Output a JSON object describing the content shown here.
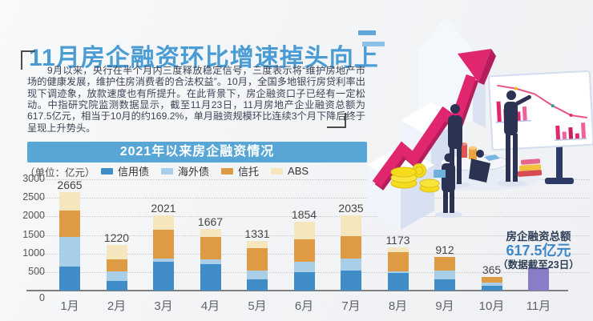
{
  "title": "11月房企融资环比增速掉头向上",
  "intro": "　　9月以来，央行在半个月内三度释放稳定信号，三度表示将“维护房地产市场的健康发展，维护住房消费者的合法权益”。10月，全国多地银行房贷利率出现下调迹象，放款速度也有所提升。在此背景下，房企融资口子已经有一定松动。中指研究院监测数据显示，截至11月23日，11月房地产企业融资总额为617.5亿元，相当于10月的约169.2%，单月融资规模环比连续3个月下降后终于呈现上升势头。",
  "chart": {
    "header": "2021年以来房企融资情况",
    "unit_label": "（单位：亿元）"
  },
  "annotation": {
    "title": "房企融资总额",
    "value": "617.5亿元",
    "note": "（数据截至23日）"
  },
  "chart_data": {
    "type": "bar",
    "stacked": true,
    "title": "2021年以来房企融资情况",
    "unit": "亿元",
    "categories": [
      "1月",
      "2月",
      "3月",
      "4月",
      "5月",
      "6月",
      "7月",
      "8月",
      "9月",
      "10月",
      "11月"
    ],
    "totals": [
      2665,
      1220,
      2021,
      1667,
      1331,
      1854,
      2035,
      1173,
      912,
      365,
      617.5
    ],
    "series": [
      {
        "name": "信用债",
        "color": "#3f8cc6",
        "values": [
          640,
          265,
          780,
          710,
          310,
          490,
          540,
          470,
          310,
          130,
          0
        ]
      },
      {
        "name": "海外债",
        "color": "#a9cfe8",
        "values": [
          800,
          245,
          90,
          130,
          230,
          285,
          315,
          40,
          225,
          85,
          0
        ]
      },
      {
        "name": "信托",
        "color": "#df9b43",
        "values": [
          710,
          330,
          770,
          600,
          600,
          610,
          610,
          530,
          377,
          150,
          0
        ]
      },
      {
        "name": "ABS",
        "color": "#f5e6bd",
        "values": [
          515,
          380,
          381,
          227,
          191,
          469,
          570,
          133,
          0,
          0,
          0
        ]
      }
    ],
    "highlight_bar": {
      "category": "11月",
      "value": 617.5,
      "color": "#8a7cc7",
      "label": "房企融资总额617.5亿元（数据截至23日）"
    },
    "ylim": [
      0,
      3000
    ],
    "yticks": [
      0,
      500,
      1000,
      1500,
      2000,
      2500,
      3000
    ],
    "grid": "dotted-horizontal",
    "legend_position": "top"
  },
  "accent_colors": {
    "title_blue": "#4a9cd4",
    "banner_blue": "#58a6d6",
    "arrow_pink": "#e0266f",
    "highlight_purple": "#8a7cc7"
  }
}
